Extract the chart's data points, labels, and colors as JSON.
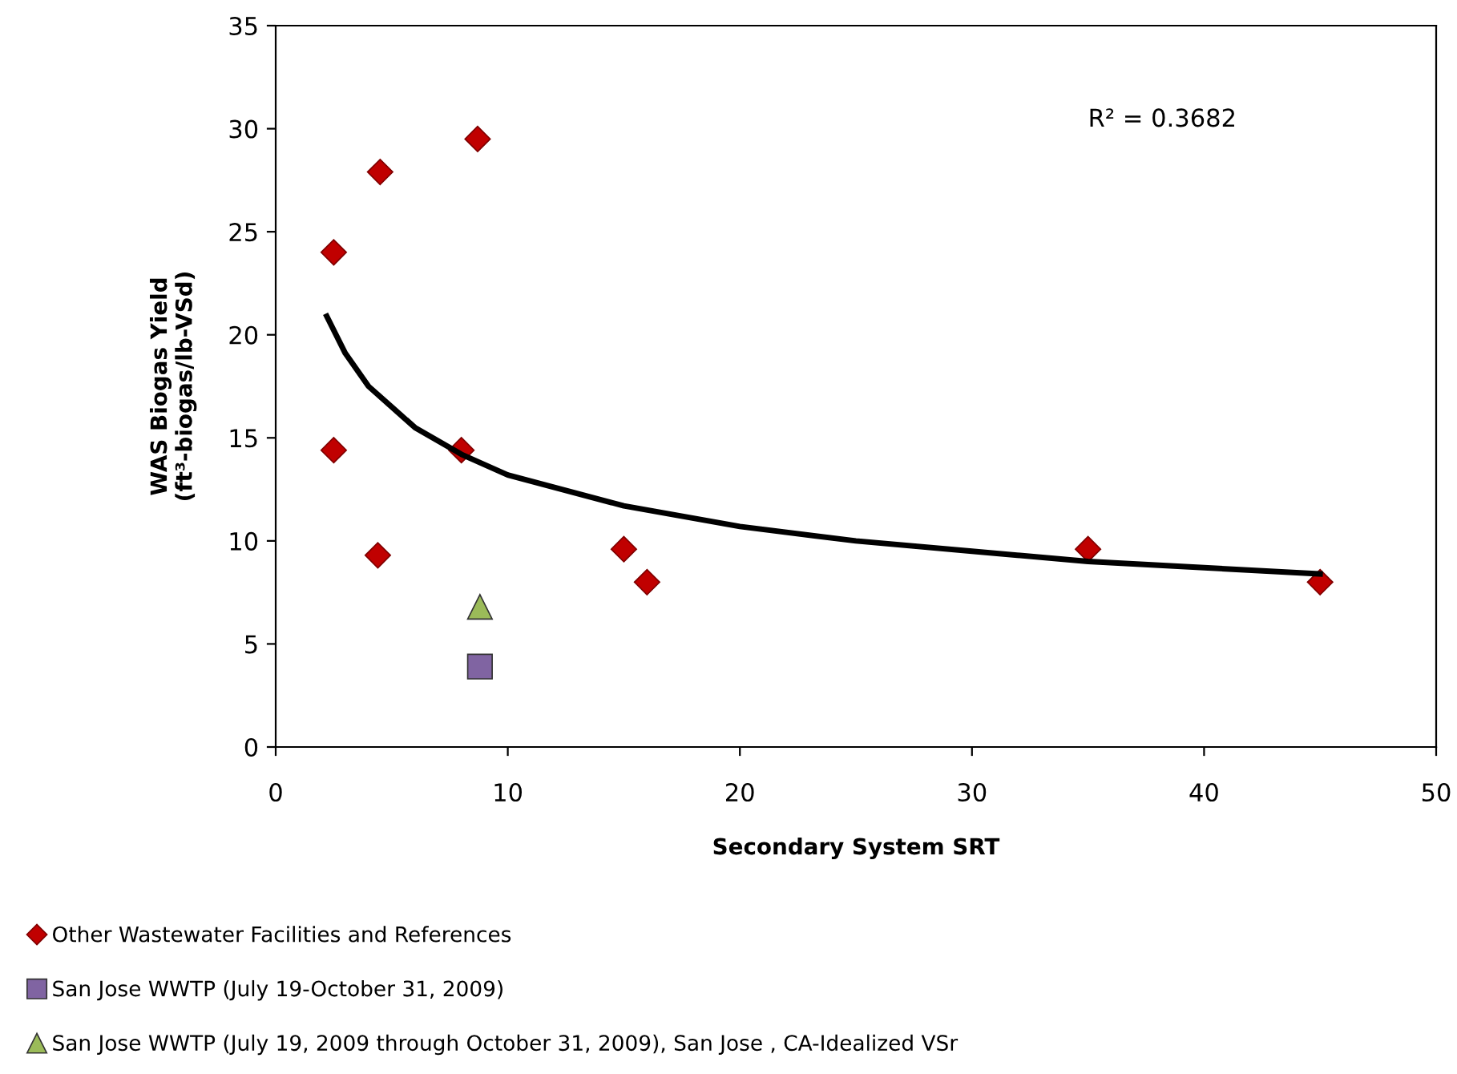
{
  "chart_data": {
    "type": "scatter",
    "xlabel": "Secondary System SRT",
    "ylabel": "WAS Biogas Yield\n(ft³-biogas/lb-VSd)",
    "xlim": [
      0,
      50
    ],
    "xticks": [
      0,
      10,
      20,
      30,
      40,
      50
    ],
    "ylim": [
      0,
      35
    ],
    "yticks": [
      0,
      5,
      10,
      15,
      20,
      25,
      30,
      35
    ],
    "grid": false,
    "legend": "bottom",
    "annotations": [
      "R² = 0.3682"
    ],
    "series": [
      {
        "name": "Other Wastewater Facilities and References",
        "color": "#c00000",
        "marker": "diamond",
        "x": [
          2.5,
          2.5,
          4.5,
          4.4,
          8.7,
          8.0,
          15,
          16,
          35,
          45
        ],
        "values": [
          24.0,
          14.4,
          27.9,
          9.3,
          29.5,
          14.4,
          9.6,
          8.0,
          9.6,
          8.0
        ]
      },
      {
        "name": "San Jose WWTP (July 19-October 31, 2009)",
        "color": "#8064a2",
        "marker": "square",
        "x": [
          8.8
        ],
        "values": [
          3.9
        ]
      },
      {
        "name": "San Jose WWTP (July 19, 2009 through October 31, 2009), San Jose , CA-Idealized VSr",
        "color": "#9bbb59",
        "marker": "triangle",
        "x": [
          8.8
        ],
        "values": [
          6.8
        ]
      },
      {
        "type": "line",
        "color": "#000000",
        "marker": "none",
        "line_style": "solid",
        "x": [
          2.2,
          3,
          4,
          6,
          8,
          10,
          15,
          20,
          25,
          30,
          35,
          40,
          45
        ],
        "values": [
          20.9,
          19.1,
          17.5,
          15.5,
          14.2,
          13.2,
          11.7,
          10.7,
          10.0,
          9.5,
          9.0,
          8.7,
          8.4
        ]
      }
    ]
  }
}
